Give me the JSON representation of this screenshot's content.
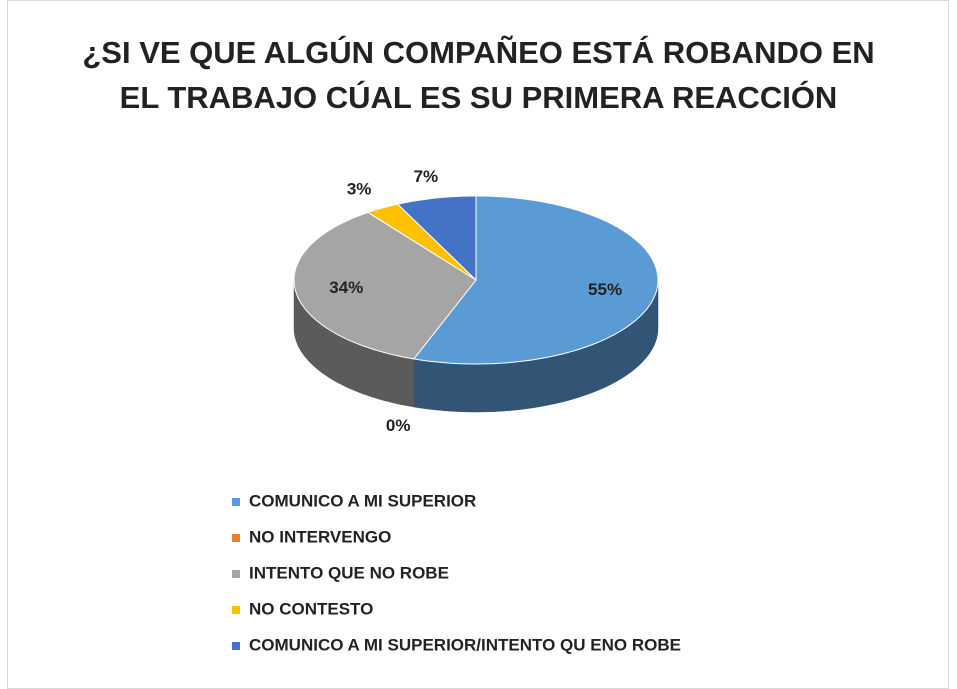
{
  "chart_data": {
    "type": "pie3d",
    "title": "¿SI VE QUE ALGÚN COMPAÑEO ESTÁ ROBANDO EN EL TRABAJO CÚAL ES SU PRIMERA REACCIÓN",
    "categories": [
      "COMUNICO A MI SUPERIOR",
      "NO INTERVENGO",
      "INTENTO QUE NO ROBE",
      "NO CONTESTO",
      "COMUNICO A MI SUPERIOR/INTENTO QU ENO ROBE"
    ],
    "values": [
      55,
      0,
      34,
      3,
      7
    ],
    "value_labels": [
      "55%",
      "0%",
      "34%",
      "3%",
      "7%"
    ],
    "colors": [
      "#5b9bd5",
      "#ed7d31",
      "#a5a5a5",
      "#ffc000",
      "#4472c4"
    ],
    "legend": "bottom"
  }
}
